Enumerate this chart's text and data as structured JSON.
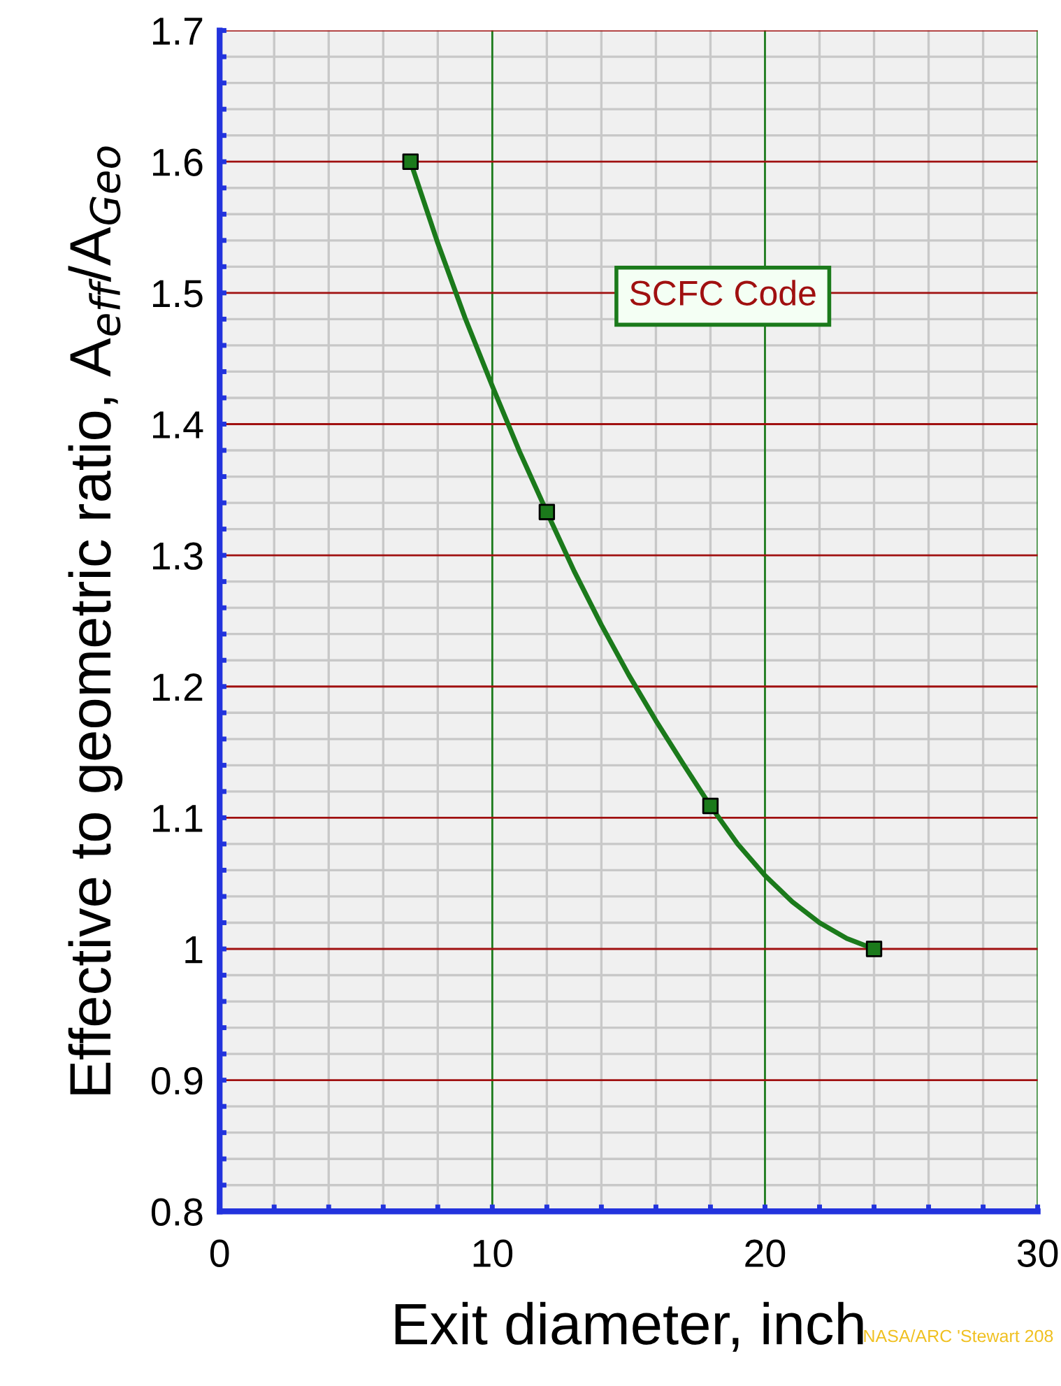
{
  "chart_data": {
    "type": "line",
    "xlabel": "Exit diameter, inch",
    "ylabel": "Effective to geometric ratio, A$_{eff}$/A$_{Geo}$",
    "x": [
      7,
      12,
      18,
      24
    ],
    "series": [
      {
        "marker": "none",
        "color": "#1b7a1b",
        "x": [
          7,
          8,
          9,
          10,
          11,
          12,
          13,
          14,
          15,
          16,
          17,
          18,
          19,
          20,
          21,
          22,
          23,
          24
        ],
        "values": [
          1.6,
          1.538,
          1.481,
          1.429,
          1.379,
          1.333,
          1.288,
          1.247,
          1.209,
          1.174,
          1.141,
          1.109,
          1.08,
          1.056,
          1.036,
          1.02,
          1.008,
          1.0
        ]
      },
      {
        "type": "scatter",
        "marker": "square",
        "color": "#1b7a1b",
        "values": [
          1.6,
          1.333,
          1.109,
          1.0
        ]
      }
    ],
    "line_style": "solid",
    "xlim": [
      0,
      30
    ],
    "ylim": [
      0.8,
      1.7
    ],
    "xticks": [
      0,
      {
        "value": 2,
        "label": null
      },
      {
        "value": 4,
        "label": null
      },
      {
        "value": 6,
        "label": null
      },
      {
        "value": 8,
        "label": null
      },
      10,
      {
        "value": 12,
        "label": null
      },
      {
        "value": 14,
        "label": null
      },
      {
        "value": 16,
        "label": null
      },
      {
        "value": 18,
        "label": null
      },
      20,
      {
        "value": 22,
        "label": null
      },
      {
        "value": 24,
        "label": null
      },
      {
        "value": 26,
        "label": null
      },
      {
        "value": 28,
        "label": null
      },
      30
    ],
    "yticks": [
      0.8,
      {
        "value": 0.82,
        "label": null
      },
      {
        "value": 0.84,
        "label": null
      },
      {
        "value": 0.86,
        "label": null
      },
      {
        "value": 0.88,
        "label": null
      },
      0.9,
      {
        "value": 0.92,
        "label": null
      },
      {
        "value": 0.94,
        "label": null
      },
      {
        "value": 0.96,
        "label": null
      },
      {
        "value": 0.98,
        "label": null
      },
      {
        "value": 1,
        "label": "1"
      },
      {
        "value": 1.02,
        "label": null
      },
      {
        "value": 1.04,
        "label": null
      },
      {
        "value": 1.06,
        "label": null
      },
      {
        "value": 1.08,
        "label": null
      },
      1.1,
      {
        "value": 1.12,
        "label": null
      },
      {
        "value": 1.14,
        "label": null
      },
      {
        "value": 1.16,
        "label": null
      },
      {
        "value": 1.18,
        "label": null
      },
      1.2,
      {
        "value": 1.22,
        "label": null
      },
      {
        "value": 1.24,
        "label": null
      },
      {
        "value": 1.26,
        "label": null
      },
      {
        "value": 1.28,
        "label": null
      },
      1.3,
      {
        "value": 1.32,
        "label": null
      },
      {
        "value": 1.34,
        "label": null
      },
      {
        "value": 1.36,
        "label": null
      },
      {
        "value": 1.38,
        "label": null
      },
      1.4,
      {
        "value": 1.42,
        "label": null
      },
      {
        "value": 1.44,
        "label": null
      },
      {
        "value": 1.46,
        "label": null
      },
      {
        "value": 1.48,
        "label": null
      },
      1.5,
      {
        "value": 1.52,
        "label": null
      },
      {
        "value": 1.54,
        "label": null
      },
      {
        "value": 1.56,
        "label": null
      },
      {
        "value": 1.58,
        "label": null
      },
      1.6,
      {
        "value": 1.62,
        "label": null
      },
      {
        "value": 1.64,
        "label": null
      },
      {
        "value": 1.66,
        "label": null
      },
      {
        "value": 1.68,
        "label": null
      },
      1.7
    ],
    "grid": true,
    "annotations": [
      "SCFC Code",
      "NASA/ARC 'Stewart 208"
    ]
  }
}
